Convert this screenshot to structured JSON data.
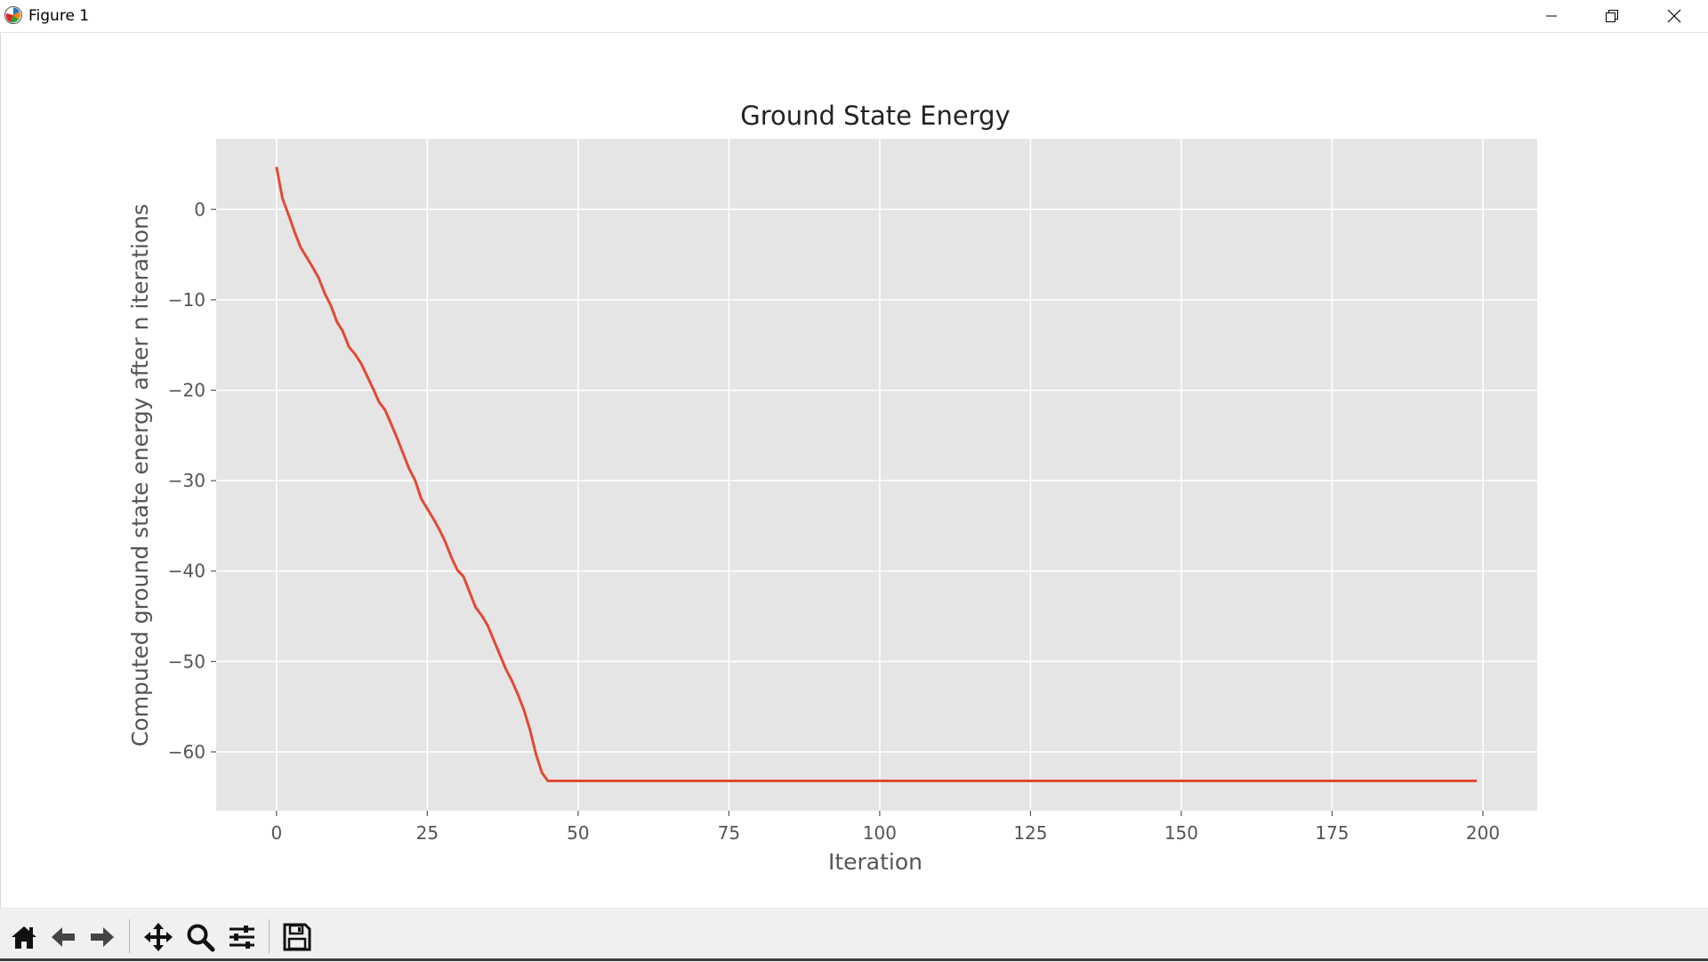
{
  "window": {
    "title": "Figure 1"
  },
  "toolbar": {
    "buttons": [
      {
        "icon": "home-icon"
      },
      {
        "icon": "back-arrow-icon"
      },
      {
        "icon": "forward-arrow-icon"
      },
      {
        "icon": "pan-icon"
      },
      {
        "icon": "zoom-icon"
      },
      {
        "icon": "subplots-config-icon"
      },
      {
        "icon": "save-icon"
      }
    ]
  },
  "colors": {
    "plot_background": "#e5e5e5",
    "grid": "#ffffff",
    "line": "#e24a33",
    "text": "#555555",
    "title": "#222222"
  },
  "chart_data": {
    "type": "line",
    "title": "Ground State Energy",
    "xlabel": "Iteration",
    "ylabel": "Computed ground state energy after n iterations",
    "xlim": [
      -10,
      209
    ],
    "ylim": [
      -66.5,
      7.8
    ],
    "xticks": [
      0,
      25,
      50,
      75,
      100,
      125,
      150,
      175,
      200
    ],
    "xtick_labels": [
      "0",
      "25",
      "50",
      "75",
      "100",
      "125",
      "150",
      "175",
      "200"
    ],
    "yticks": [
      0,
      -10,
      -20,
      -30,
      -40,
      -50,
      -60
    ],
    "ytick_labels": [
      "0",
      "−10",
      "−20",
      "−30",
      "−40",
      "−50",
      "−60"
    ],
    "grid": true,
    "series": [
      {
        "x": [
          0,
          1,
          2,
          3,
          4,
          5,
          6,
          7,
          8,
          9,
          10,
          11,
          12,
          13,
          14,
          15,
          16,
          17,
          18,
          19,
          20,
          21,
          22,
          23,
          24,
          25,
          26,
          27,
          28,
          29,
          30,
          31,
          32,
          33,
          34,
          35,
          36,
          37,
          38,
          39,
          40,
          41,
          42,
          43,
          44,
          45,
          46,
          60,
          80,
          100,
          120,
          140,
          160,
          180,
          199
        ],
        "y": [
          4.7,
          1.2,
          -0.6,
          -2.5,
          -4.2,
          -5.3,
          -6.4,
          -7.6,
          -9.3,
          -10.6,
          -12.4,
          -13.5,
          -15.2,
          -16.0,
          -17.0,
          -18.4,
          -19.8,
          -21.3,
          -22.2,
          -23.7,
          -25.3,
          -27.0,
          -28.7,
          -30.0,
          -32.0,
          -33.1,
          -34.2,
          -35.4,
          -36.8,
          -38.5,
          -39.9,
          -40.6,
          -42.3,
          -44.0,
          -44.9,
          -46.0,
          -47.6,
          -49.2,
          -50.8,
          -52.1,
          -53.6,
          -55.3,
          -57.5,
          -60.2,
          -62.3,
          -63.2,
          -63.2,
          -63.2,
          -63.2,
          -63.2,
          -63.2,
          -63.2,
          -63.2,
          -63.2,
          -63.2
        ]
      }
    ]
  }
}
